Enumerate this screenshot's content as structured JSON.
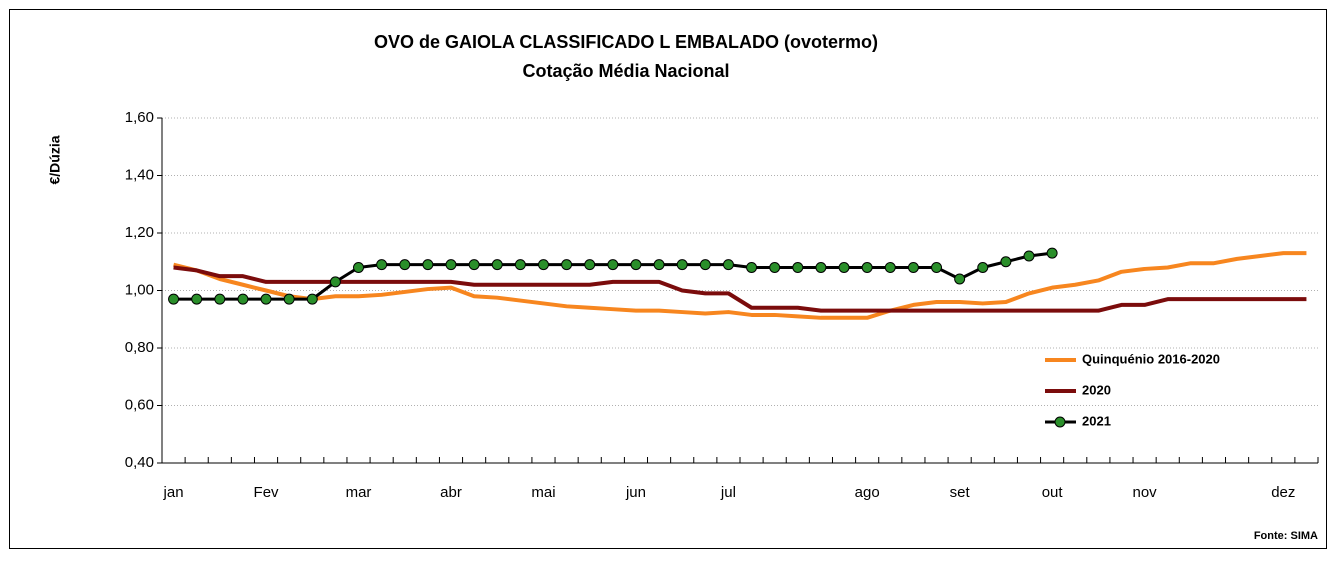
{
  "chart_data": {
    "type": "line",
    "title": "OVO de GAIOLA CLASSIFICADO L EMBALADO (ovotermo)",
    "subtitle": "Cotação Média Nacional",
    "y_label": "€/Dúzia",
    "source": "Fonte: SIMA",
    "categories": [
      "jan",
      null,
      null,
      null,
      "Fev",
      null,
      null,
      null,
      "mar",
      null,
      null,
      null,
      "abr",
      null,
      null,
      null,
      "mai",
      null,
      null,
      null,
      "jun",
      null,
      null,
      null,
      "jul",
      null,
      null,
      null,
      null,
      null,
      "ago",
      null,
      null,
      null,
      "set",
      null,
      null,
      null,
      "out",
      null,
      null,
      null,
      "nov",
      null,
      null,
      null,
      null,
      null,
      "dez",
      null
    ],
    "ylim": [
      0.4,
      1.6
    ],
    "yticks": [
      {
        "value": 0.4,
        "label": "0,40"
      },
      {
        "value": 0.6,
        "label": "0,60"
      },
      {
        "value": 0.8,
        "label": "0,80"
      },
      {
        "value": 1.0,
        "label": "1,00"
      },
      {
        "value": 1.2,
        "label": "1,20"
      },
      {
        "value": 1.4,
        "label": "1,40"
      },
      {
        "value": 1.6,
        "label": "1,60"
      }
    ],
    "grid": true,
    "legend": "lower right",
    "series": [
      {
        "name": "Quinquénio 2016-2020",
        "color": "#f7861f",
        "marker": false,
        "values": [
          1.09,
          1.07,
          1.04,
          1.02,
          1.0,
          0.98,
          0.97,
          0.98,
          0.98,
          0.985,
          0.995,
          1.005,
          1.01,
          0.98,
          0.975,
          0.965,
          0.955,
          0.945,
          0.94,
          0.935,
          0.93,
          0.93,
          0.925,
          0.92,
          0.925,
          0.915,
          0.915,
          0.91,
          0.905,
          0.905,
          0.905,
          0.93,
          0.95,
          0.96,
          0.96,
          0.955,
          0.96,
          0.99,
          1.01,
          1.02,
          1.035,
          1.065,
          1.075,
          1.08,
          1.095,
          1.095,
          1.11,
          1.12,
          1.13,
          1.13
        ]
      },
      {
        "name": "2020",
        "color": "#7b0c0c",
        "marker": false,
        "values": [
          1.08,
          1.07,
          1.05,
          1.05,
          1.03,
          1.03,
          1.03,
          1.03,
          1.03,
          1.03,
          1.03,
          1.03,
          1.03,
          1.02,
          1.02,
          1.02,
          1.02,
          1.02,
          1.02,
          1.03,
          1.03,
          1.03,
          1.0,
          0.99,
          0.99,
          0.94,
          0.94,
          0.94,
          0.93,
          0.93,
          0.93,
          0.93,
          0.93,
          0.93,
          0.93,
          0.93,
          0.93,
          0.93,
          0.93,
          0.93,
          0.93,
          0.95,
          0.95,
          0.97,
          0.97,
          0.97,
          0.97,
          0.97,
          0.97,
          0.97
        ]
      },
      {
        "name": "2021",
        "color": "#000000",
        "marker": true,
        "marker_color": "#2a8f2a",
        "values": [
          0.97,
          0.97,
          0.97,
          0.97,
          0.97,
          0.97,
          0.97,
          1.03,
          1.08,
          1.09,
          1.09,
          1.09,
          1.09,
          1.09,
          1.09,
          1.09,
          1.09,
          1.09,
          1.09,
          1.09,
          1.09,
          1.09,
          1.09,
          1.09,
          1.09,
          1.08,
          1.08,
          1.08,
          1.08,
          1.08,
          1.08,
          1.08,
          1.08,
          1.08,
          1.04,
          1.08,
          1.1,
          1.12,
          1.13,
          null,
          null,
          null,
          null,
          null,
          null,
          null,
          null,
          null,
          null,
          null
        ]
      }
    ]
  }
}
